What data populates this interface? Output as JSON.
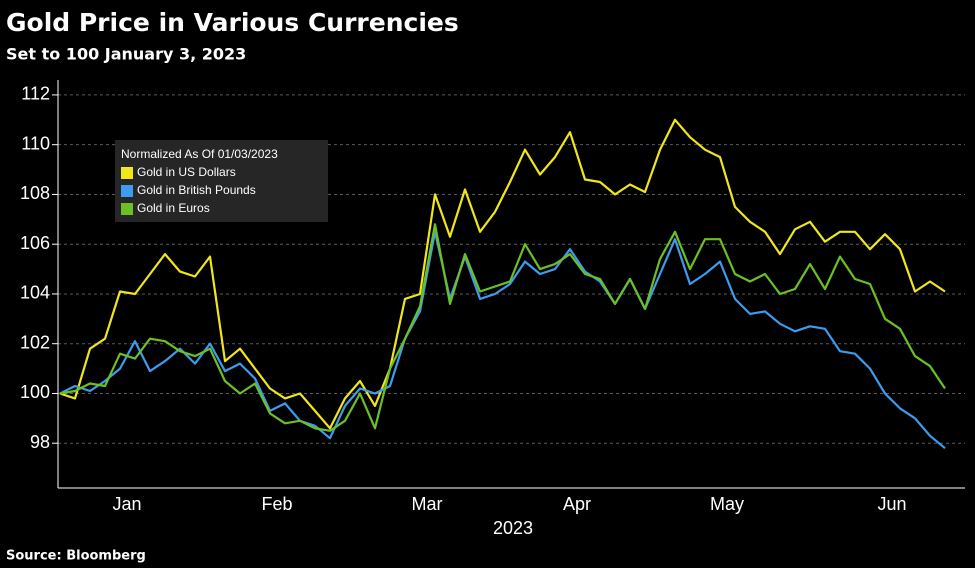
{
  "chart_data": {
    "type": "line",
    "title": "Gold Price in Various Currencies",
    "subtitle": "Set to 100 January 3, 2023",
    "source": "Source: Bloomberg",
    "xlabel": "2023",
    "legend_title": "Normalized As Of 01/03/2023",
    "legend": "upper left",
    "grid": true,
    "categories": [
      null,
      null,
      null,
      null,
      "Jan",
      null,
      null,
      null,
      null,
      null,
      null,
      null,
      null,
      null,
      "Feb",
      null,
      null,
      null,
      null,
      null,
      null,
      null,
      null,
      null,
      "Mar",
      null,
      null,
      null,
      null,
      null,
      null,
      null,
      null,
      null,
      "Apr",
      null,
      null,
      null,
      null,
      null,
      null,
      null,
      null,
      null,
      "May",
      null,
      null,
      null,
      null,
      null,
      null,
      null,
      null,
      null,
      null,
      "Jun",
      null,
      null,
      null,
      null
    ],
    "ylim": [
      96.2,
      112.6
    ],
    "yticks": [
      98,
      100,
      102,
      104,
      106,
      108,
      110,
      112
    ],
    "series": [
      {
        "name": "Gold in US Dollars",
        "color": "#f0e619",
        "values": [
          100.0,
          99.8,
          101.8,
          102.2,
          104.1,
          104.0,
          104.8,
          105.6,
          104.9,
          104.7,
          105.5,
          101.3,
          101.8,
          101.0,
          100.2,
          99.8,
          100.0,
          99.3,
          98.6,
          99.8,
          100.5,
          99.5,
          101.0,
          103.8,
          104.0,
          108.0,
          106.3,
          108.2,
          106.5,
          107.3,
          108.5,
          109.8,
          108.8,
          109.5,
          110.5,
          108.6,
          108.5,
          108.0,
          108.4,
          108.1,
          109.8,
          111.0,
          110.3,
          109.8,
          109.5,
          107.5,
          106.9,
          106.5,
          105.6,
          106.6,
          106.9,
          106.1,
          106.5,
          106.5,
          105.8,
          106.4,
          105.8,
          104.1,
          104.5,
          104.1
        ]
      },
      {
        "name": "Gold in British Pounds",
        "color": "#3d9cf0",
        "values": [
          100.0,
          100.3,
          100.1,
          100.5,
          101.0,
          102.1,
          100.9,
          101.3,
          101.8,
          101.2,
          102.0,
          100.9,
          101.2,
          100.6,
          99.3,
          99.6,
          98.9,
          98.7,
          98.2,
          99.5,
          100.2,
          100.0,
          100.3,
          102.2,
          103.3,
          106.5,
          103.8,
          105.5,
          103.8,
          104.0,
          104.4,
          105.3,
          104.8,
          105.0,
          105.8,
          104.9,
          104.5,
          103.6,
          104.6,
          103.4,
          104.8,
          106.2,
          104.4,
          104.8,
          105.3,
          103.8,
          103.2,
          103.3,
          102.8,
          102.5,
          102.7,
          102.6,
          101.7,
          101.6,
          101.0,
          100.0,
          99.4,
          99.0,
          98.3,
          97.8
        ]
      },
      {
        "name": "Gold in Euros",
        "color": "#6cc024",
        "values": [
          100.0,
          100.1,
          100.4,
          100.3,
          101.6,
          101.4,
          102.2,
          102.1,
          101.7,
          101.5,
          101.8,
          100.5,
          100.0,
          100.4,
          99.2,
          98.8,
          98.9,
          98.6,
          98.5,
          98.9,
          100.0,
          98.6,
          101.0,
          102.2,
          103.5,
          106.8,
          103.6,
          105.6,
          104.1,
          104.3,
          104.5,
          106.0,
          105.0,
          105.2,
          105.6,
          104.8,
          104.6,
          103.6,
          104.6,
          103.4,
          105.4,
          106.5,
          105.0,
          106.2,
          106.2,
          104.8,
          104.5,
          104.8,
          104.0,
          104.2,
          105.2,
          104.2,
          105.5,
          104.6,
          104.4,
          103.0,
          102.6,
          101.5,
          101.1,
          100.2
        ]
      }
    ]
  }
}
